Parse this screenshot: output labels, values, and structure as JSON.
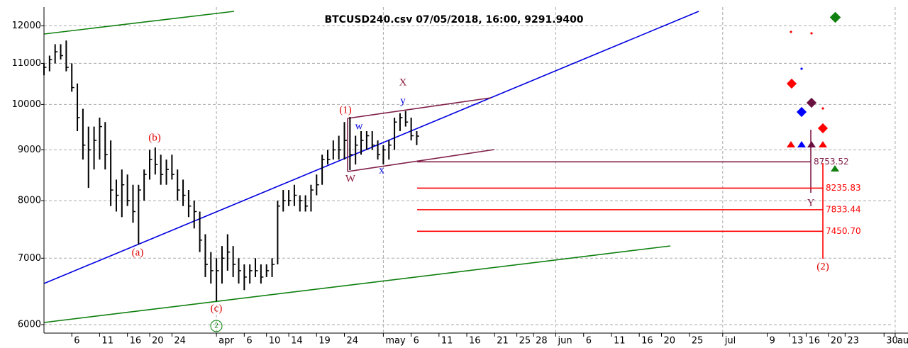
{
  "chart_data": {
    "type": "ohlc",
    "title": "BTCUSD240.csv  07/05/2018, 16:00, 9291.9400",
    "log_scale": true,
    "grid": true,
    "ylim": [
      5883,
      12535
    ],
    "yticks": [
      6000,
      7000,
      8000,
      9000,
      10000,
      11000,
      12000
    ],
    "xlim": [
      0,
      152.5
    ],
    "xticks": [
      {
        "value": 5,
        "label": "6"
      },
      {
        "value": 10,
        "label": "11"
      },
      {
        "value": 15,
        "label": "16"
      },
      {
        "value": 19,
        "label": "20"
      },
      {
        "value": 23,
        "label": "24"
      },
      {
        "value": 31,
        "label": "apr"
      },
      {
        "value": 36,
        "label": "6"
      },
      {
        "value": 40,
        "label": "10"
      },
      {
        "value": 44,
        "label": "14"
      },
      {
        "value": 49,
        "label": "19"
      },
      {
        "value": 54,
        "label": "24"
      },
      {
        "value": 61,
        "label": "may"
      },
      {
        "value": 66,
        "label": "6"
      },
      {
        "value": 71,
        "label": "11"
      },
      {
        "value": 76,
        "label": "16"
      },
      {
        "value": 81,
        "label": "21"
      },
      {
        "value": 85,
        "label": "25"
      },
      {
        "value": 88,
        "label": "28"
      },
      {
        "value": 92,
        "label": "jun"
      },
      {
        "value": 97,
        "label": "6"
      },
      {
        "value": 102,
        "label": "11"
      },
      {
        "value": 107,
        "label": "16"
      },
      {
        "value": 111,
        "label": "20"
      },
      {
        "value": 116,
        "label": "25"
      },
      {
        "value": 122,
        "label": "jul"
      },
      {
        "value": 130,
        "label": "9"
      },
      {
        "value": 134,
        "label": "13"
      },
      {
        "value": 137,
        "label": "16"
      },
      {
        "value": 141,
        "label": "20"
      },
      {
        "value": 144,
        "label": "23"
      },
      {
        "value": 151,
        "label": "30"
      },
      {
        "value": 153,
        "label": "aug"
      }
    ],
    "series": [
      {
        "name": "BTCUSD",
        "color": "#000000",
        "x": [
          0,
          1,
          2,
          3,
          4,
          5,
          6,
          7,
          8,
          9,
          10,
          11,
          12,
          13,
          14,
          15,
          16,
          17,
          18,
          19,
          20,
          21,
          22,
          23,
          24,
          25,
          26,
          27,
          28,
          29,
          30,
          31,
          32,
          33,
          34,
          35,
          36,
          37,
          38,
          39,
          40,
          41,
          42,
          43,
          44,
          45,
          46,
          47,
          48,
          49,
          50,
          51,
          52,
          53,
          54,
          55,
          56,
          57,
          58,
          59,
          60,
          61,
          62,
          63,
          64,
          65,
          66,
          67
        ],
        "high": [
          11000,
          11200,
          11500,
          11500,
          11600,
          11000,
          10500,
          9900,
          9500,
          9500,
          9700,
          9600,
          9200,
          8400,
          8600,
          8500,
          8300,
          8300,
          8600,
          9000,
          9050,
          8900,
          8800,
          8900,
          8600,
          8400,
          8200,
          8000,
          7800,
          7400,
          7100,
          7000,
          7200,
          7400,
          7200,
          7000,
          6900,
          6900,
          7000,
          6900,
          6900,
          7000,
          8000,
          8200,
          8200,
          8300,
          8100,
          8100,
          8300,
          8500,
          8900,
          9000,
          9200,
          9300,
          9600,
          9713,
          9300,
          9400,
          9400,
          9400,
          9200,
          9100,
          9200,
          9700,
          9800,
          9850,
          9700,
          9400
        ],
        "low": [
          10700,
          10800,
          11000,
          11100,
          10800,
          10300,
          9400,
          8800,
          8240,
          8600,
          8800,
          8600,
          7900,
          7800,
          7700,
          7900,
          7600,
          7226,
          8000,
          8400,
          8500,
          8300,
          8300,
          8400,
          8000,
          7900,
          7700,
          7500,
          7100,
          6700,
          6600,
          6337,
          6600,
          6800,
          6700,
          6600,
          6500,
          6600,
          6700,
          6600,
          6700,
          6700,
          6900,
          7800,
          7900,
          7900,
          7800,
          7800,
          7800,
          8100,
          8300,
          8700,
          8800,
          8800,
          8800,
          8587,
          8700,
          8900,
          9000,
          9000,
          8800,
          8700,
          8800,
          9000,
          9400,
          9500,
          9200,
          9100
        ],
        "close": [
          10900,
          11100,
          11300,
          11200,
          10900,
          10400,
          9700,
          9100,
          9000,
          9200,
          9500,
          8900,
          8200,
          8100,
          8300,
          8000,
          7800,
          8200,
          8500,
          8800,
          8700,
          8500,
          8600,
          8500,
          8200,
          8100,
          7900,
          7800,
          7300,
          6900,
          6800,
          6800,
          7000,
          7100,
          6900,
          6800,
          6700,
          6800,
          6800,
          6700,
          6800,
          6900,
          7900,
          8000,
          8000,
          8100,
          8000,
          7900,
          8200,
          8300,
          8800,
          8800,
          9000,
          9000,
          9200,
          8900,
          9100,
          9200,
          9300,
          9100,
          8900,
          9000,
          9100,
          9600,
          9700,
          9600,
          9300,
          9291.94
        ]
      }
    ],
    "levels": {
      "values": [
        8753.52,
        8235.83,
        7833.44,
        7450.7
      ],
      "value_labels": [
        "8753.52",
        "8235.83",
        "7833.44",
        "7450.70"
      ],
      "colors": [
        "#80204a",
        "#ff0000",
        "#ff0000",
        "#ff0000"
      ]
    },
    "annotations": [
      {
        "text": "(a)",
        "color": "#e00000"
      },
      {
        "text": "(b)",
        "color": "#e00000"
      },
      {
        "text": "(c)",
        "color": "#e00000"
      },
      {
        "text": "2",
        "color": "#008000"
      },
      {
        "text": "(1)",
        "color": "#e00000"
      },
      {
        "text": "X",
        "color": "#8b1a3a"
      },
      {
        "text": "y",
        "color": "#0000e0"
      },
      {
        "text": "w",
        "color": "#0000e0"
      },
      {
        "text": "x",
        "color": "#0000e0"
      },
      {
        "text": "W",
        "color": "#8b1a3a"
      },
      {
        "text": "Y",
        "color": "#80204a"
      },
      {
        "text": "(2)",
        "color": "#e00000"
      }
    ]
  }
}
